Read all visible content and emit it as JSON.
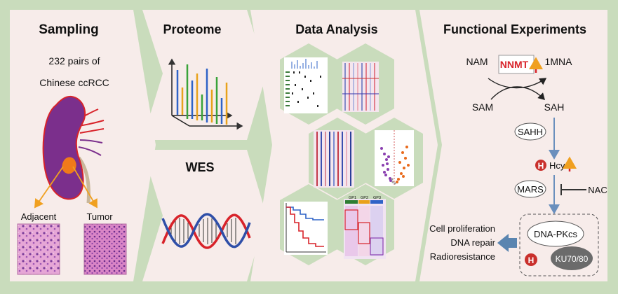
{
  "colors": {
    "background": "#c9dcbc",
    "panel": "#f7ecea",
    "kidney": "#7b2f8c",
    "tumor": "#f07a1a",
    "nnmt_red": "#d8232a",
    "arrow_blue": "#6a8fbd",
    "slide_pink": "#c87bb6"
  },
  "sampling": {
    "title": "Sampling",
    "caption_line1": "232 pairs of",
    "caption_line2": "Chinese ccRCC",
    "label_adjacent": "Adjacent",
    "label_tumor": "Tumor"
  },
  "proteome": {
    "title": "Proteome"
  },
  "wes": {
    "title": "WES"
  },
  "data_analysis": {
    "title": "Data Analysis",
    "groups": [
      "GP1",
      "GP2",
      "GP3"
    ]
  },
  "functional": {
    "title": "Functional Experiments",
    "nam": "NAM",
    "nnmt": "NNMT",
    "mna": "1MNA",
    "sam": "SAM",
    "sah": "SAH",
    "sahh": "SAHH",
    "h_symbol": "H",
    "hcy": "Hcy",
    "mars": "MARS",
    "nac": "NAC",
    "dnapkcs": "DNA-PKcs",
    "ku": "KU70/80",
    "outcome_1": "Cell proliferation",
    "outcome_2": "DNA repair",
    "outcome_3": "Radioresistance"
  }
}
